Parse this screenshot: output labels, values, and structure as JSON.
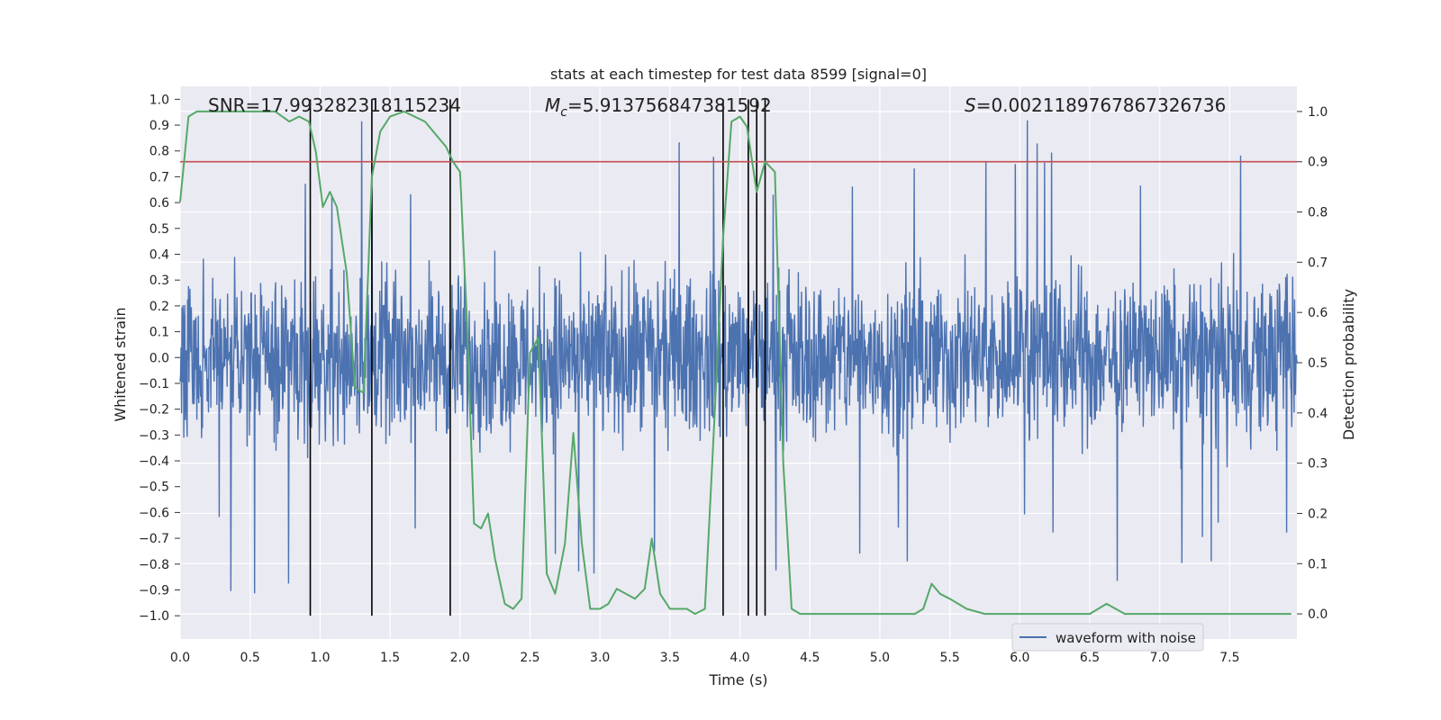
{
  "chart_data": {
    "type": "line",
    "title": "stats at each timestep for test data 8599 [signal=0]",
    "xlabel": "Time (s)",
    "ylabel": "Whitened strain",
    "y2label": "Detection probability",
    "xlim": [
      0.0,
      7.98
    ],
    "ylim": [
      -1.09,
      1.05
    ],
    "y2lim": [
      -0.05,
      1.05
    ],
    "xticks": [
      "0.0",
      "0.5",
      "1.0",
      "1.5",
      "2.0",
      "2.5",
      "3.0",
      "3.5",
      "4.0",
      "4.5",
      "5.0",
      "5.5",
      "6.0",
      "6.5",
      "7.0",
      "7.5"
    ],
    "yticks": [
      "1.0",
      "0.9",
      "0.8",
      "0.7",
      "0.6",
      "0.5",
      "0.4",
      "0.3",
      "0.2",
      "0.1",
      "0.0",
      "−0.1",
      "−0.2",
      "−0.3",
      "−0.4",
      "−0.5",
      "−0.6",
      "−0.7",
      "−0.8",
      "−0.9",
      "−1.0"
    ],
    "y2ticks": [
      "0.0",
      "0.1",
      "0.2",
      "0.3",
      "0.4",
      "0.5",
      "0.6",
      "0.7",
      "0.8",
      "0.9",
      "1.0"
    ],
    "annotations": {
      "snr": "SNR=17.993282318115234",
      "mc_symbol": "M",
      "mc_sub": "c",
      "mc_value": "=5.913756847381592",
      "s_symbol": "S",
      "s_value": "=0.0021189767867326736"
    },
    "legend": {
      "label": "waveform with noise",
      "placement": "lower-right"
    },
    "threshold_probability": 0.9,
    "vertical_lines_x": [
      0.93,
      1.37,
      1.93,
      3.88,
      4.06,
      4.12,
      4.18
    ],
    "series": [
      {
        "name": "waveform with noise",
        "color": "#4c72b0",
        "description": "whitened strain noise, envelope approx ±0.4 with spikes to ±0.9",
        "envelope": 0.4
      },
      {
        "name": "detection probability",
        "color": "#55a868",
        "axis": "right",
        "x": [
          0.0,
          0.06,
          0.12,
          0.25,
          0.5,
          0.68,
          0.78,
          0.85,
          0.92,
          0.97,
          1.02,
          1.07,
          1.12,
          1.19,
          1.25,
          1.31,
          1.37,
          1.43,
          1.5,
          1.6,
          1.75,
          1.9,
          1.95,
          2.0,
          2.05,
          2.1,
          2.15,
          2.2,
          2.25,
          2.32,
          2.38,
          2.44,
          2.5,
          2.56,
          2.62,
          2.68,
          2.75,
          2.81,
          2.87,
          2.93,
          3.0,
          3.06,
          3.12,
          3.25,
          3.32,
          3.37,
          3.43,
          3.5,
          3.62,
          3.68,
          3.75,
          3.82,
          3.88,
          3.94,
          4.0,
          4.05,
          4.12,
          4.18,
          4.25,
          4.31,
          4.37,
          4.43,
          4.56,
          4.75,
          5.0,
          5.25,
          5.31,
          5.37,
          5.43,
          5.5,
          5.56,
          5.62,
          5.75,
          6.0,
          6.25,
          6.5,
          6.62,
          6.75,
          7.0,
          7.5,
          7.94
        ],
        "values": [
          0.82,
          0.99,
          1.0,
          1.0,
          1.0,
          1.0,
          0.98,
          0.99,
          0.98,
          0.92,
          0.81,
          0.84,
          0.81,
          0.68,
          0.45,
          0.44,
          0.87,
          0.96,
          0.99,
          1.0,
          0.98,
          0.93,
          0.9,
          0.88,
          0.58,
          0.18,
          0.17,
          0.2,
          0.11,
          0.02,
          0.01,
          0.03,
          0.52,
          0.55,
          0.08,
          0.04,
          0.14,
          0.36,
          0.14,
          0.01,
          0.01,
          0.02,
          0.05,
          0.03,
          0.05,
          0.15,
          0.04,
          0.01,
          0.01,
          0.0,
          0.01,
          0.4,
          0.75,
          0.98,
          0.99,
          0.97,
          0.84,
          0.9,
          0.88,
          0.3,
          0.01,
          0.0,
          0.0,
          0.0,
          0.0,
          0.0,
          0.01,
          0.06,
          0.04,
          0.03,
          0.02,
          0.01,
          0.0,
          0.0,
          0.0,
          0.0,
          0.02,
          0.0,
          0.0,
          0.0,
          0.0
        ]
      }
    ]
  }
}
